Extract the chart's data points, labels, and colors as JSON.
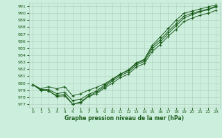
{
  "xlabel": "Graphe pression niveau de la mer (hPa)",
  "background_color": "#cceedd",
  "grid_color": "#b0ccbb",
  "line_color": "#1a5c1a",
  "xlim": [
    -0.5,
    23.5
  ],
  "ylim": [
    976.5,
    991.5
  ],
  "yticks": [
    977,
    978,
    979,
    980,
    981,
    982,
    983,
    984,
    985,
    986,
    987,
    988,
    989,
    990,
    991
  ],
  "xticks": [
    0,
    1,
    2,
    3,
    4,
    5,
    6,
    7,
    8,
    9,
    10,
    11,
    12,
    13,
    14,
    15,
    16,
    17,
    18,
    19,
    20,
    21,
    22,
    23
  ],
  "line1": [
    979.8,
    979.0,
    978.9,
    978.1,
    978.2,
    977.0,
    977.2,
    978.1,
    978.5,
    979.3,
    980.0,
    980.8,
    981.3,
    982.3,
    982.8,
    984.5,
    985.5,
    986.7,
    987.7,
    988.8,
    989.3,
    989.7,
    990.0,
    990.4
  ],
  "line2": [
    979.8,
    979.0,
    978.9,
    978.2,
    978.4,
    977.0,
    977.3,
    978.2,
    978.7,
    979.5,
    980.3,
    981.1,
    981.6,
    982.6,
    983.1,
    984.9,
    985.9,
    987.1,
    988.2,
    989.3,
    989.8,
    990.2,
    990.5,
    990.9
  ],
  "line3": [
    979.8,
    979.1,
    979.1,
    978.5,
    978.7,
    977.5,
    977.7,
    978.4,
    978.9,
    979.7,
    980.5,
    981.3,
    981.8,
    982.8,
    983.3,
    985.2,
    986.2,
    987.4,
    988.5,
    989.6,
    990.0,
    990.3,
    990.6,
    991.0
  ],
  "line4": [
    979.8,
    979.2,
    979.5,
    979.2,
    979.5,
    978.2,
    978.5,
    979.0,
    979.4,
    979.9,
    980.6,
    981.3,
    981.9,
    982.9,
    983.4,
    985.4,
    986.6,
    987.8,
    989.0,
    990.0,
    990.3,
    990.6,
    990.9,
    991.2
  ]
}
